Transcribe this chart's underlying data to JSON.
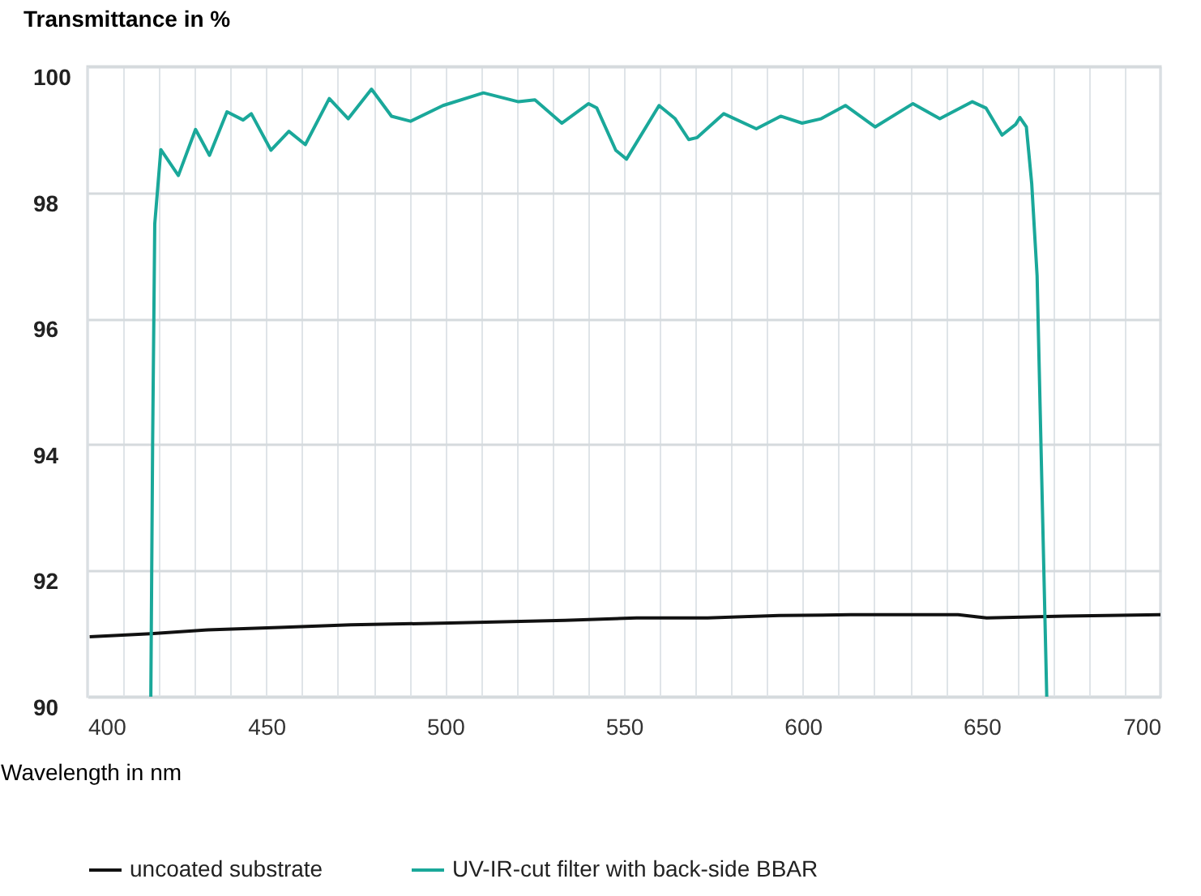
{
  "chart_data": {
    "type": "line",
    "ylabel": "Transmittance in %",
    "xlabel": "Wavelength in nm",
    "xlim": [
      400,
      700
    ],
    "ylim": [
      90,
      100
    ],
    "xticks": [
      400,
      {
        "value": 410,
        "label": null
      },
      {
        "value": 420,
        "label": null
      },
      {
        "value": 430,
        "label": null
      },
      {
        "value": 440,
        "label": null
      },
      450,
      {
        "value": 460,
        "label": null
      },
      {
        "value": 470,
        "label": null
      },
      {
        "value": 480,
        "label": null
      },
      {
        "value": 490,
        "label": null
      },
      500,
      {
        "value": 510,
        "label": null
      },
      {
        "value": 520,
        "label": null
      },
      {
        "value": 530,
        "label": null
      },
      {
        "value": 540,
        "label": null
      },
      550,
      {
        "value": 560,
        "label": null
      },
      {
        "value": 570,
        "label": null
      },
      {
        "value": 580,
        "label": null
      },
      {
        "value": 590,
        "label": null
      },
      600,
      {
        "value": 610,
        "label": null
      },
      {
        "value": 620,
        "label": null
      },
      {
        "value": 630,
        "label": null
      },
      {
        "value": 640,
        "label": null
      },
      650,
      {
        "value": 660,
        "label": null
      },
      {
        "value": 670,
        "label": null
      },
      {
        "value": 680,
        "label": null
      },
      {
        "value": 690,
        "label": null
      },
      700
    ],
    "yticks": [
      90,
      92,
      94,
      96,
      98,
      100
    ],
    "grid": true,
    "legend": "bottom",
    "marker": "none",
    "line_style": "solid",
    "series": [
      {
        "name": "uncoated substrate",
        "color": "#111111",
        "x": [
          400.6,
          417.6,
          433.6,
          453.6,
          473.6,
          501.5,
          533.5,
          553.5,
          573.4,
          593.4,
          613.4,
          643.4,
          651.4,
          673.4,
          700
        ],
        "values": [
          90.95,
          91.0,
          91.06,
          91.1,
          91.14,
          91.17,
          91.21,
          91.25,
          91.25,
          91.29,
          91.3,
          91.3,
          91.25,
          91.28,
          91.3
        ]
      },
      {
        "name": "UV-IR-cut filter with back-side BBAR",
        "color": "#1aa89a",
        "x": [
          417.7,
          418.2,
          418.8,
          420.5,
          425.4,
          430.2,
          434.1,
          439.0,
          443.5,
          445.8,
          451.3,
          456.3,
          460.9,
          467.6,
          472.9,
          479.4,
          485.0,
          490.3,
          499.4,
          510.7,
          520.5,
          525.1,
          532.6,
          540.1,
          542.4,
          547.7,
          550.7,
          559.8,
          564.3,
          568.1,
          570.4,
          577.9,
          587.0,
          593.8,
          599.8,
          605.1,
          611.9,
          620.2,
          630.8,
          638.3,
          647.4,
          651.2,
          655.7,
          659.5,
          660.7,
          662.5,
          664.0,
          665.5,
          668.2
        ],
        "values": [
          90,
          94,
          97.5,
          98.68,
          98.27,
          99.0,
          98.59,
          99.28,
          99.15,
          99.25,
          98.67,
          98.97,
          98.76,
          99.49,
          99.17,
          99.64,
          99.21,
          99.13,
          99.38,
          99.58,
          99.44,
          99.47,
          99.1,
          99.41,
          99.34,
          98.67,
          98.53,
          99.38,
          99.17,
          98.84,
          98.87,
          99.25,
          99.01,
          99.21,
          99.1,
          99.17,
          99.38,
          99.04,
          99.41,
          99.17,
          99.44,
          99.34,
          98.91,
          99.08,
          99.19,
          99.04,
          98.14,
          96.68,
          90
        ]
      }
    ]
  }
}
